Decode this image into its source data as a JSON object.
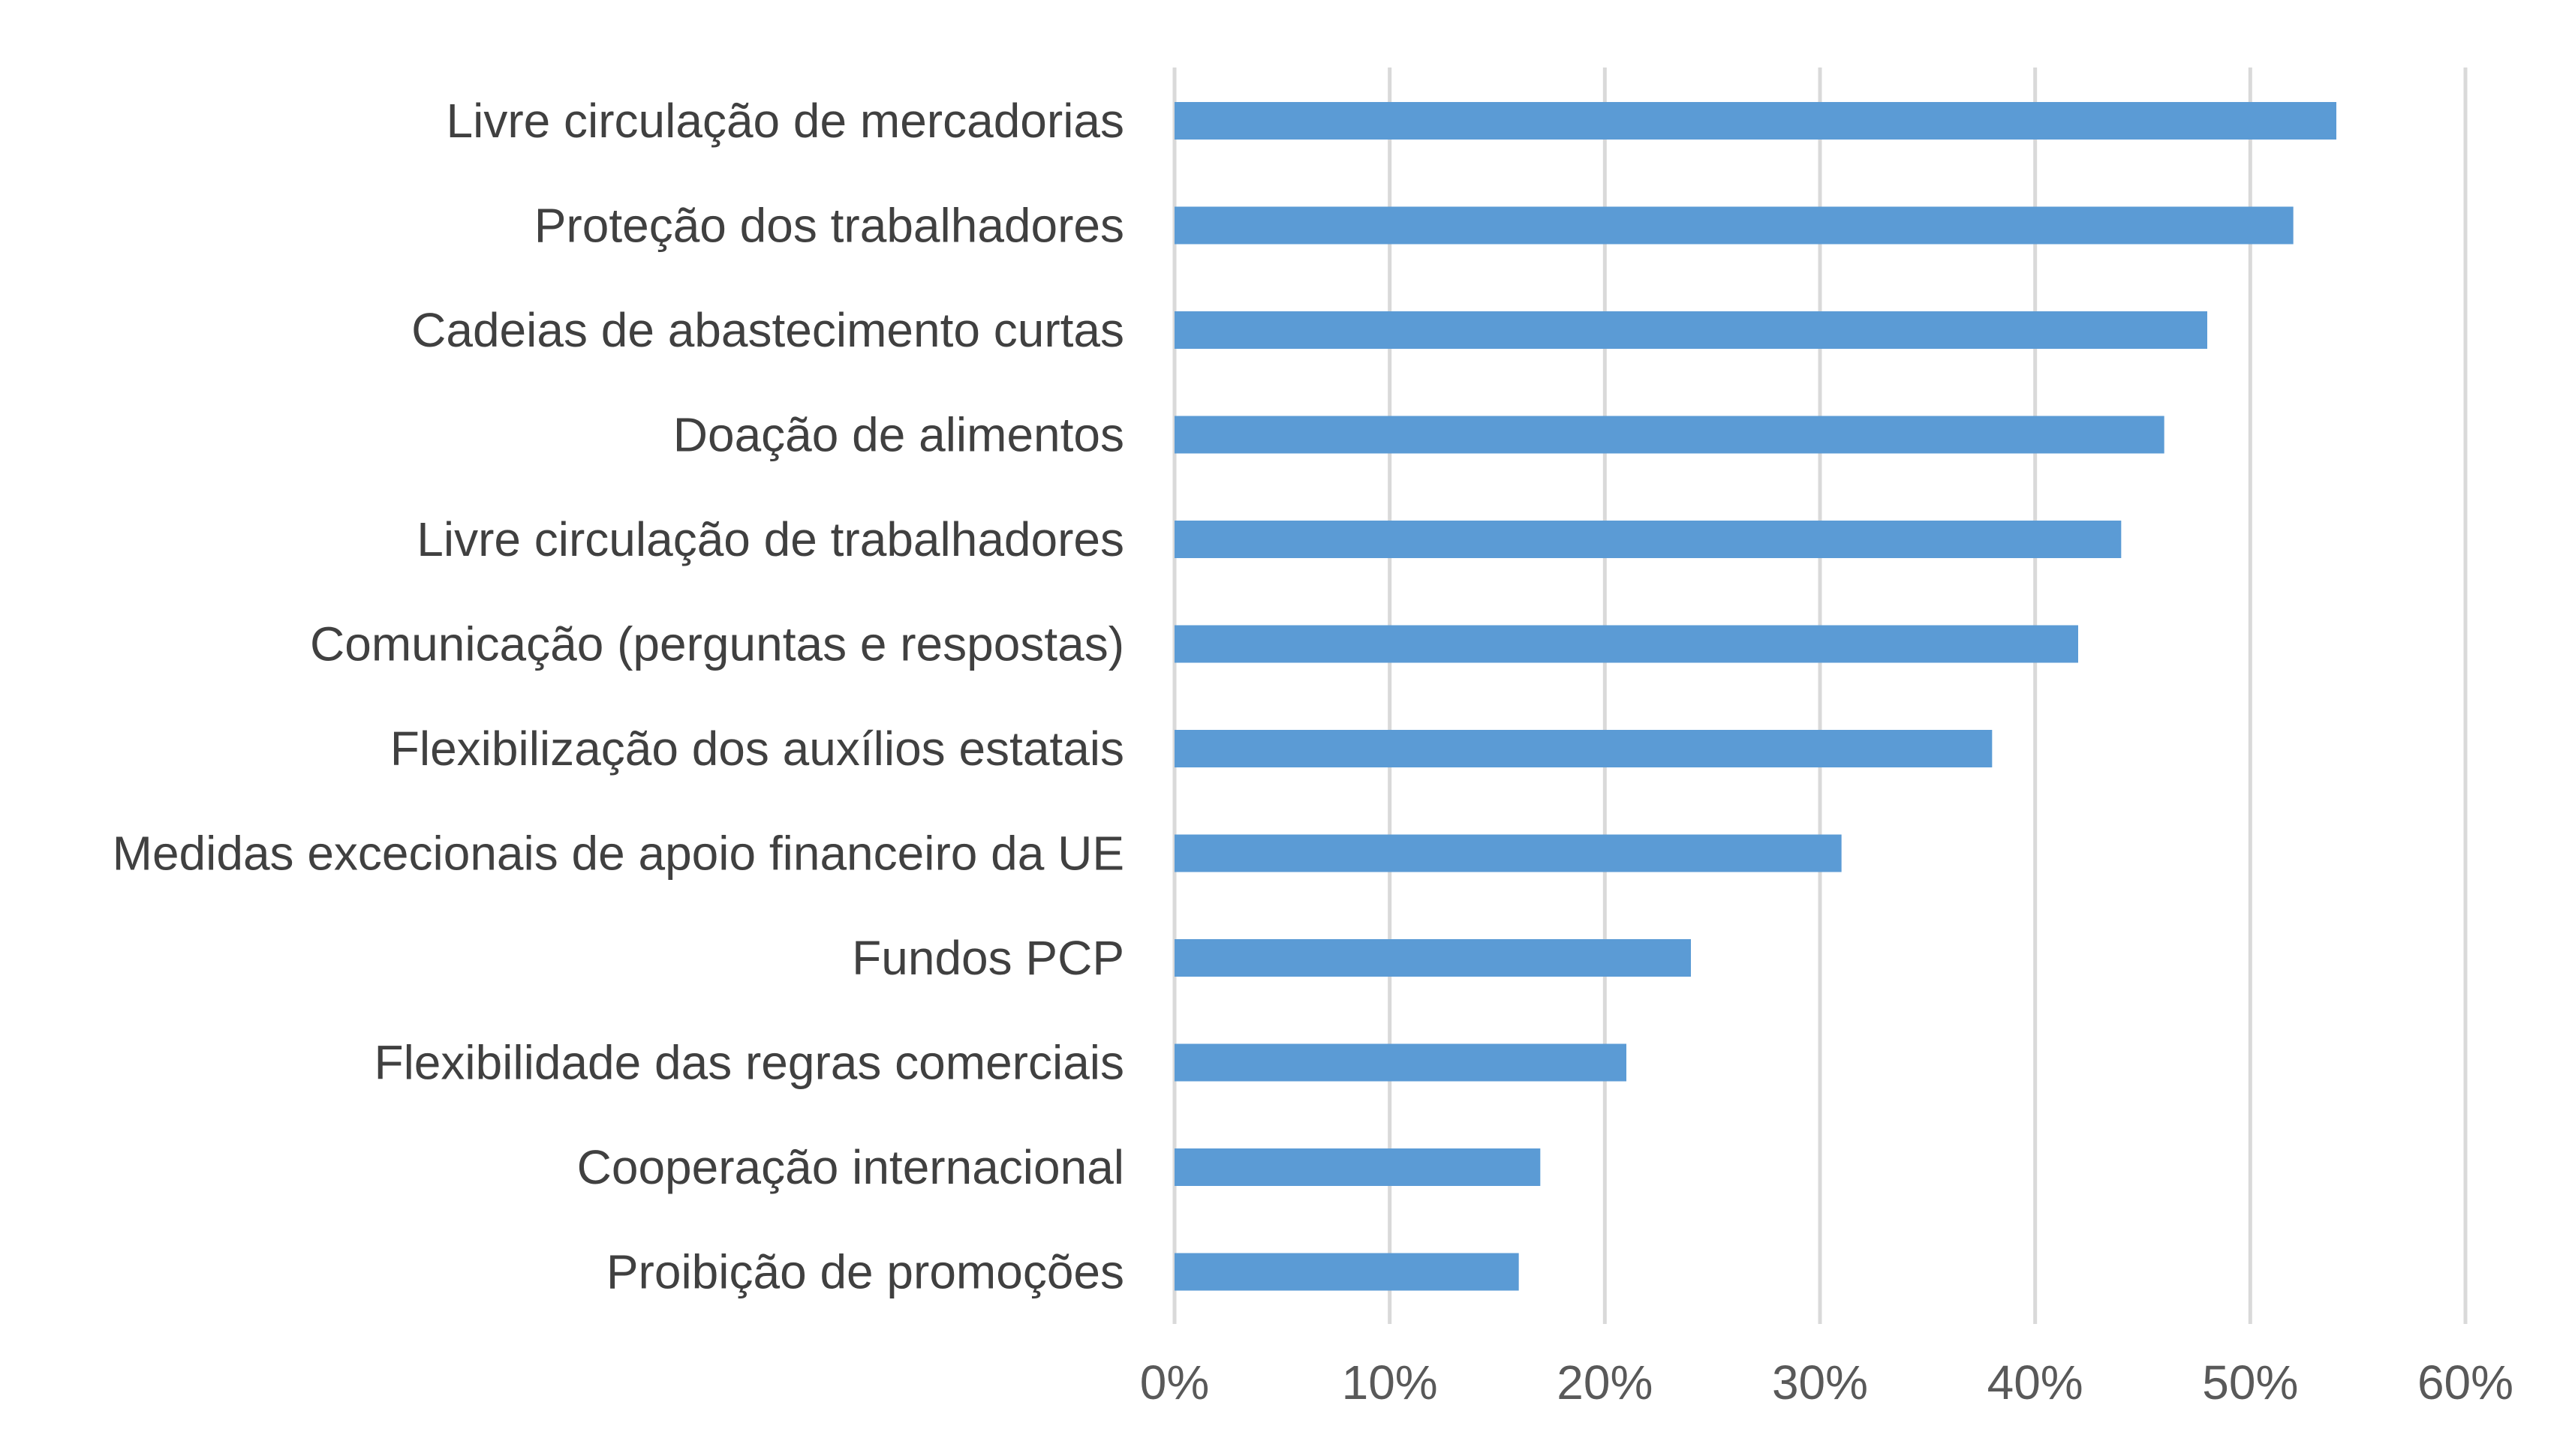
{
  "chart_data": {
    "type": "bar",
    "orientation": "horizontal",
    "categories": [
      "Livre circulação de mercadorias",
      "Proteção dos trabalhadores",
      "Cadeias de abastecimento curtas",
      "Doação de alimentos ",
      "Livre circulação de trabalhadores",
      "Comunicação (perguntas e respostas) ",
      "Flexibilização dos auxílios estatais",
      "Medidas excecionais de apoio financeiro da UE",
      "Fundos PCP",
      "Flexibilidade das regras comerciais",
      "Cooperação internacional",
      "Proibição de promoções"
    ],
    "values": [
      0.54,
      0.52,
      0.48,
      0.46,
      0.44,
      0.42,
      0.38,
      0.31,
      0.24,
      0.21,
      0.17,
      0.16
    ],
    "xlim": [
      0,
      0.6
    ],
    "xticks": [
      0,
      0.1,
      0.2,
      0.3,
      0.4,
      0.5,
      0.6
    ],
    "xtick_labels": [
      "0%",
      "10%",
      "20%",
      "30%",
      "40%",
      "50%",
      "60%"
    ],
    "title": "",
    "xlabel": "",
    "ylabel": "",
    "grid": "vertical",
    "legend": "none",
    "bar_color": "#5b9bd5",
    "gridline_color": "#d9d9d9",
    "label_color": "#404040",
    "tick_label_color": "#595959"
  }
}
